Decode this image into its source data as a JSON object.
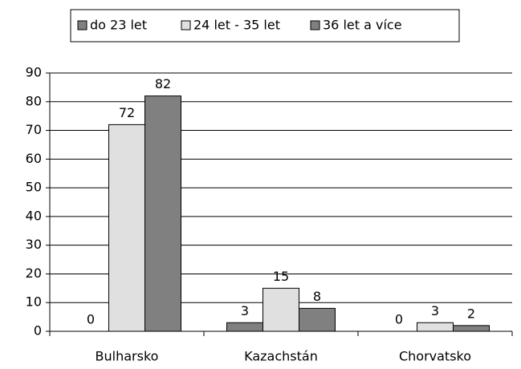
{
  "chart_data": {
    "type": "bar",
    "categories": [
      "Bulharsko",
      "Kazachstán",
      "Chorvatsko"
    ],
    "series": [
      {
        "name": "do 23 let",
        "color": "#808080",
        "values": [
          0,
          3,
          0
        ]
      },
      {
        "name": "24 let - 35 let",
        "color": "#e0e0e0",
        "values": [
          72,
          15,
          3
        ]
      },
      {
        "name": "36 let a více",
        "color": "#808080",
        "values": [
          82,
          8,
          2
        ]
      }
    ],
    "ylim": [
      0,
      90
    ],
    "yticks": [
      0,
      10,
      20,
      30,
      40,
      50,
      60,
      70,
      80,
      90
    ],
    "grid": true,
    "legend": "top"
  }
}
